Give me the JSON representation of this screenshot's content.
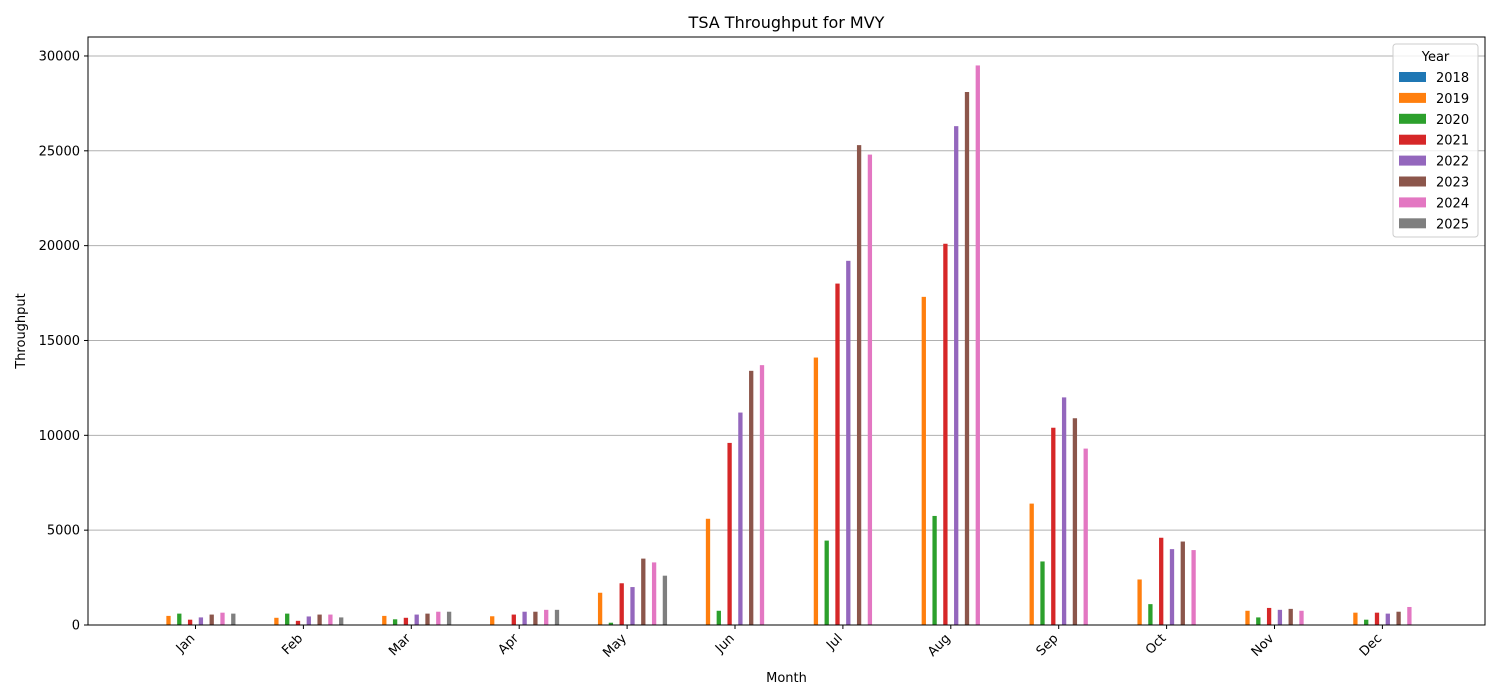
{
  "chart_data": {
    "type": "bar",
    "title": "TSA Throughput for MVY",
    "xlabel": "Month",
    "ylabel": "Throughput",
    "categories": [
      "Jan",
      "Feb",
      "Mar",
      "Apr",
      "May",
      "Jun",
      "Jul",
      "Aug",
      "Sep",
      "Oct",
      "Nov",
      "Dec"
    ],
    "ylim": [
      0,
      31000
    ],
    "yticks": [
      0,
      5000,
      10000,
      15000,
      20000,
      25000,
      30000
    ],
    "grid": "y",
    "legend": {
      "title": "Year",
      "placement": "top-right"
    },
    "series": [
      {
        "name": "2018",
        "color": "#1f77b4",
        "values": [
          null,
          null,
          null,
          null,
          null,
          null,
          null,
          null,
          null,
          null,
          null,
          null
        ]
      },
      {
        "name": "2019",
        "color": "#ff7f0e",
        "values": [
          480,
          380,
          480,
          460,
          1700,
          5600,
          14100,
          17300,
          6400,
          2400,
          750,
          650
        ]
      },
      {
        "name": "2020",
        "color": "#2ca02c",
        "values": [
          600,
          600,
          300,
          null,
          120,
          750,
          4450,
          5750,
          3350,
          1100,
          400,
          280
        ]
      },
      {
        "name": "2021",
        "color": "#d62728",
        "values": [
          280,
          220,
          380,
          550,
          2200,
          9600,
          18000,
          20100,
          10400,
          4600,
          900,
          650
        ]
      },
      {
        "name": "2022",
        "color": "#9467bd",
        "values": [
          400,
          450,
          550,
          700,
          2000,
          11200,
          19200,
          26300,
          12000,
          4000,
          800,
          600
        ]
      },
      {
        "name": "2023",
        "color": "#8c564b",
        "values": [
          550,
          550,
          600,
          700,
          3500,
          13400,
          25300,
          28100,
          10900,
          4400,
          850,
          700
        ]
      },
      {
        "name": "2024",
        "color": "#e377c2",
        "values": [
          650,
          550,
          700,
          800,
          3300,
          13700,
          24800,
          29500,
          9300,
          3950,
          750,
          950
        ]
      },
      {
        "name": "2025",
        "color": "#7f7f7f",
        "values": [
          600,
          400,
          700,
          800,
          2600,
          null,
          null,
          null,
          null,
          null,
          null,
          null
        ]
      }
    ]
  }
}
